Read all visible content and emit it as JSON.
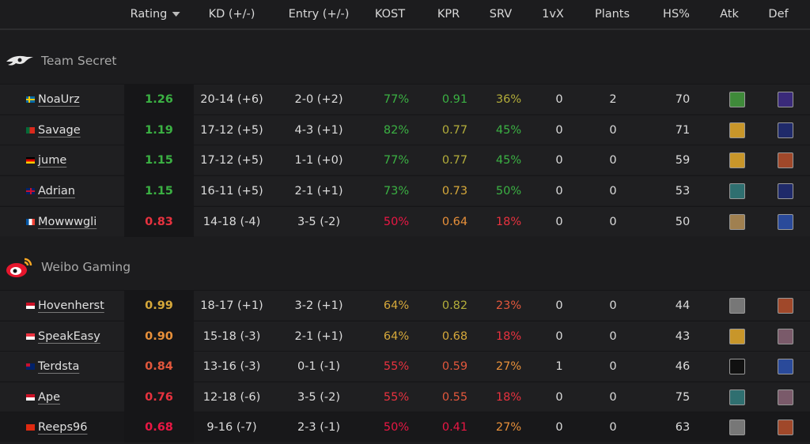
{
  "columns": {
    "rating": "Rating",
    "kd": "KD (+/-)",
    "entry": "Entry (+/-)",
    "kost": "KOST",
    "kpr": "KPR",
    "srv": "SRV",
    "onevx": "1vX",
    "plants": "Plants",
    "hs": "HS%",
    "atk": "Atk",
    "def": "Def"
  },
  "sort": {
    "column": "Rating",
    "direction": "descending"
  },
  "colors": {
    "green": "#3bb143",
    "olive": "#b3ad3a",
    "yellow": "#d6a83a",
    "orange": "#e8903a",
    "redorange": "#e2573c",
    "red": "#e8323f",
    "deepred": "#ea1744",
    "neutral": "#dcdcdc"
  },
  "teams": [
    {
      "name": "Team Secret",
      "logo": "team-secret-logo",
      "players": [
        {
          "name": "NoaUrz",
          "flag": "sweden",
          "rating": "1.26",
          "rating_c": "green",
          "kd": "20-14 (+6)",
          "entry": "2-0 (+2)",
          "kost": "77%",
          "kost_c": "green",
          "kpr": "0.91",
          "kpr_c": "green",
          "srv": "36%",
          "srv_c": "olive",
          "onevx": "0",
          "plants": "2",
          "hs": "70",
          "atk": "green",
          "def": "purple"
        },
        {
          "name": "Savage",
          "flag": "portugal",
          "rating": "1.19",
          "rating_c": "green",
          "kd": "17-12 (+5)",
          "entry": "4-3 (+1)",
          "kost": "82%",
          "kost_c": "green",
          "kpr": "0.77",
          "kpr_c": "olive",
          "srv": "45%",
          "srv_c": "green",
          "onevx": "0",
          "plants": "0",
          "hs": "71",
          "atk": "gold",
          "def": "navy"
        },
        {
          "name": "jume",
          "flag": "germany",
          "rating": "1.15",
          "rating_c": "green",
          "kd": "17-12 (+5)",
          "entry": "1-1 (+0)",
          "kost": "77%",
          "kost_c": "green",
          "kpr": "0.77",
          "kpr_c": "olive",
          "srv": "45%",
          "srv_c": "green",
          "onevx": "0",
          "plants": "0",
          "hs": "59",
          "atk": "gold",
          "def": "brick"
        },
        {
          "name": "Adrian",
          "flag": "uk",
          "rating": "1.15",
          "rating_c": "green",
          "kd": "16-11 (+5)",
          "entry": "2-1 (+1)",
          "kost": "73%",
          "kost_c": "green",
          "kpr": "0.73",
          "kpr_c": "yellow",
          "srv": "50%",
          "srv_c": "green",
          "onevx": "0",
          "plants": "0",
          "hs": "53",
          "atk": "teal",
          "def": "navy"
        },
        {
          "name": "Mowwwgli",
          "flag": "france",
          "rating": "0.83",
          "rating_c": "red",
          "kd": "14-18 (-4)",
          "entry": "3-5 (-2)",
          "kost": "50%",
          "kost_c": "deepred",
          "kpr": "0.64",
          "kpr_c": "orange",
          "srv": "18%",
          "srv_c": "red",
          "onevx": "0",
          "plants": "0",
          "hs": "50",
          "atk": "tan",
          "def": "blue"
        }
      ]
    },
    {
      "name": "Weibo Gaming",
      "logo": "weibo-gaming-logo",
      "players": [
        {
          "name": "Hovenherst",
          "flag": "indonesia",
          "rating": "0.99",
          "rating_c": "yellow",
          "kd": "18-17 (+1)",
          "entry": "3-2 (+1)",
          "kost": "64%",
          "kost_c": "yellow",
          "kpr": "0.82",
          "kpr_c": "olive",
          "srv": "23%",
          "srv_c": "redorange",
          "onevx": "0",
          "plants": "0",
          "hs": "44",
          "atk": "grey",
          "def": "brick"
        },
        {
          "name": "SpeakEasy",
          "flag": "singapore",
          "rating": "0.90",
          "rating_c": "orange",
          "kd": "15-18 (-3)",
          "entry": "2-1 (+1)",
          "kost": "64%",
          "kost_c": "yellow",
          "kpr": "0.68",
          "kpr_c": "yellow",
          "srv": "18%",
          "srv_c": "red",
          "onevx": "0",
          "plants": "0",
          "hs": "43",
          "atk": "gold",
          "def": "mauve"
        },
        {
          "name": "Terdsta",
          "flag": "new-zealand",
          "rating": "0.84",
          "rating_c": "redorange",
          "kd": "13-16 (-3)",
          "entry": "0-1 (-1)",
          "kost": "55%",
          "kost_c": "red",
          "kpr": "0.59",
          "kpr_c": "redorange",
          "srv": "27%",
          "srv_c": "orange",
          "onevx": "1",
          "plants": "0",
          "hs": "46",
          "atk": "black",
          "def": "blue"
        },
        {
          "name": "Ape",
          "flag": "indonesia",
          "rating": "0.76",
          "rating_c": "red",
          "kd": "12-18 (-6)",
          "entry": "3-5 (-2)",
          "kost": "55%",
          "kost_c": "red",
          "kpr": "0.55",
          "kpr_c": "redorange",
          "srv": "18%",
          "srv_c": "red",
          "onevx": "0",
          "plants": "0",
          "hs": "75",
          "atk": "teal",
          "def": "mauve"
        },
        {
          "name": "Reeps96",
          "flag": "china",
          "rating": "0.68",
          "rating_c": "deepred",
          "kd": "9-16 (-7)",
          "entry": "2-3 (-1)",
          "kost": "50%",
          "kost_c": "deepred",
          "kpr": "0.41",
          "kpr_c": "deepred",
          "srv": "27%",
          "srv_c": "orange",
          "onevx": "0",
          "plants": "0",
          "hs": "63",
          "atk": "grey",
          "def": "brick"
        }
      ]
    }
  ]
}
